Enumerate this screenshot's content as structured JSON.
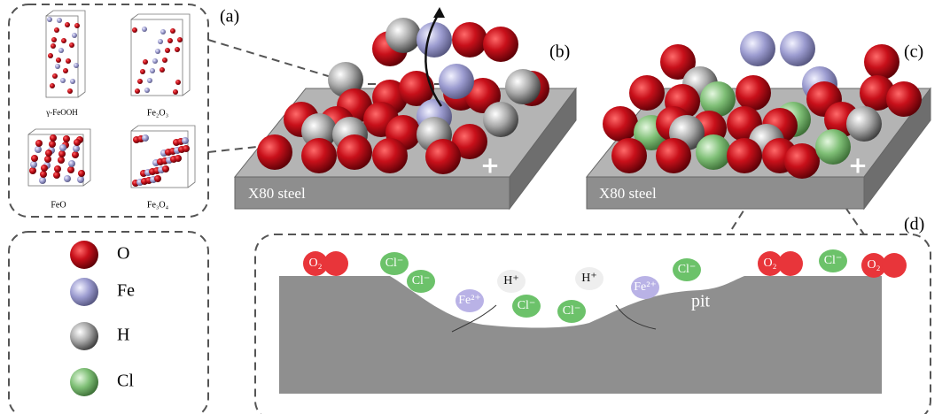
{
  "panel_a": {
    "label": "(a)",
    "structures": [
      "γ-FeOOH",
      "Fe₂O₃",
      "FeO",
      "Fe₃O₄"
    ]
  },
  "panel_b": {
    "label": "(b)",
    "substrate": "X80 steel",
    "sign": "+"
  },
  "panel_c": {
    "label": "(c)",
    "substrate": "X80 steel",
    "sign": "+"
  },
  "legend": [
    "O",
    "Fe",
    "H",
    "Cl"
  ],
  "panel_d": {
    "label": "(d)",
    "species": [
      "O₂",
      "Cl⁻",
      "Cl⁻",
      "H⁺",
      "Fe²⁺",
      "Cl⁻",
      "Cl⁻",
      "H⁺",
      "Fe²⁺",
      "Cl⁻",
      "O₂",
      "Cl⁻",
      "O₂"
    ],
    "pit": "pit"
  }
}
